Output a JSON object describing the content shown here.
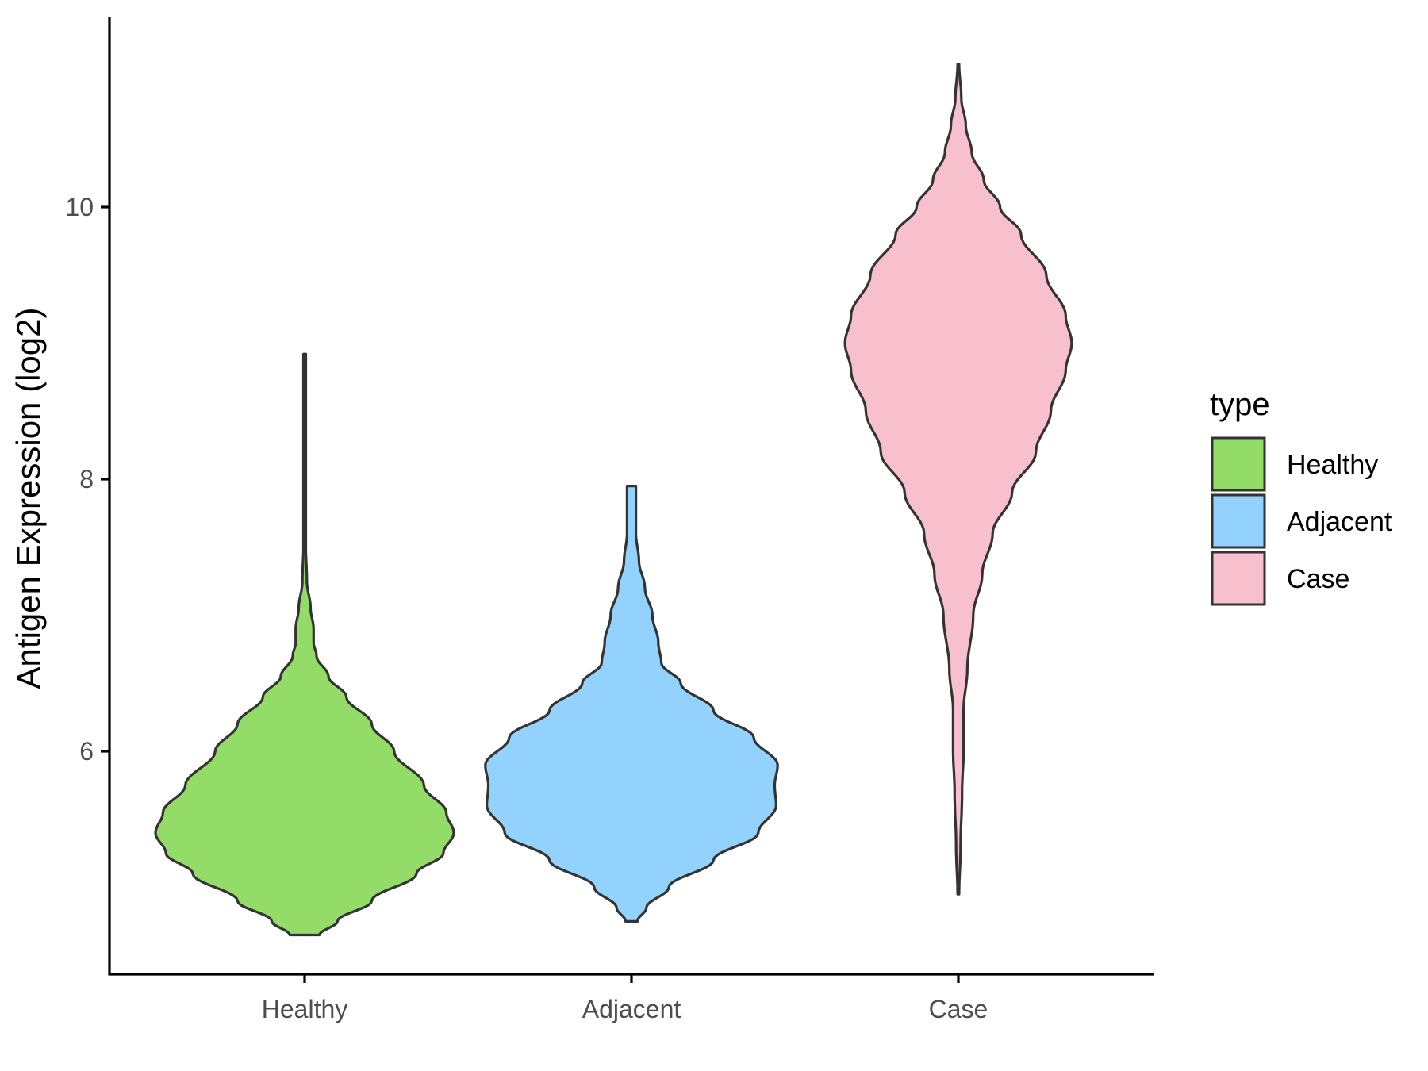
{
  "chart_data": {
    "type": "violin",
    "title": "",
    "xlabel": "",
    "ylabel": "Antigen Expression (log2)",
    "categories": [
      "Healthy",
      "Adjacent",
      "Case"
    ],
    "y_ticks": [
      6,
      8,
      10
    ],
    "ylim": [
      4.4,
      11.4
    ],
    "grid": false,
    "legend": {
      "title": "type",
      "placement": "right",
      "entries": [
        "Healthy",
        "Adjacent",
        "Case"
      ]
    },
    "colors": {
      "Healthy": "#93dc68",
      "Adjacent": "#92d2fc",
      "Case": "#f7c0cc",
      "outline": "#333333",
      "axis": "#000000"
    },
    "series": [
      {
        "category": "Healthy",
        "min": 4.65,
        "max": 8.92,
        "density_profile": [
          [
            4.65,
            0.1
          ],
          [
            4.75,
            0.22
          ],
          [
            4.9,
            0.45
          ],
          [
            5.1,
            0.75
          ],
          [
            5.25,
            0.93
          ],
          [
            5.4,
            1.0
          ],
          [
            5.55,
            0.95
          ],
          [
            5.75,
            0.8
          ],
          [
            6.0,
            0.6
          ],
          [
            6.2,
            0.45
          ],
          [
            6.4,
            0.28
          ],
          [
            6.55,
            0.16
          ],
          [
            6.7,
            0.08
          ],
          [
            6.8,
            0.06
          ],
          [
            6.9,
            0.06
          ],
          [
            7.05,
            0.04
          ],
          [
            7.25,
            0.015
          ],
          [
            7.5,
            0.008
          ],
          [
            8.0,
            0.008
          ],
          [
            8.6,
            0.008
          ],
          [
            8.92,
            0.008
          ]
        ]
      },
      {
        "category": "Adjacent",
        "min": 4.75,
        "max": 7.95,
        "density_profile": [
          [
            4.75,
            0.04
          ],
          [
            4.85,
            0.1
          ],
          [
            5.0,
            0.25
          ],
          [
            5.2,
            0.55
          ],
          [
            5.4,
            0.85
          ],
          [
            5.6,
            0.97
          ],
          [
            5.75,
            0.96
          ],
          [
            5.9,
            0.98
          ],
          [
            6.1,
            0.82
          ],
          [
            6.3,
            0.55
          ],
          [
            6.5,
            0.33
          ],
          [
            6.65,
            0.2
          ],
          [
            6.8,
            0.18
          ],
          [
            7.0,
            0.14
          ],
          [
            7.2,
            0.09
          ],
          [
            7.4,
            0.05
          ],
          [
            7.6,
            0.03
          ],
          [
            7.8,
            0.03
          ],
          [
            7.95,
            0.03
          ]
        ]
      },
      {
        "category": "Case",
        "min": 4.95,
        "max": 11.05,
        "density_profile": [
          [
            4.95,
            0.005
          ],
          [
            5.3,
            0.015
          ],
          [
            5.7,
            0.025
          ],
          [
            6.0,
            0.035
          ],
          [
            6.3,
            0.035
          ],
          [
            6.6,
            0.06
          ],
          [
            7.0,
            0.1
          ],
          [
            7.3,
            0.16
          ],
          [
            7.6,
            0.23
          ],
          [
            7.9,
            0.36
          ],
          [
            8.2,
            0.52
          ],
          [
            8.5,
            0.62
          ],
          [
            8.8,
            0.72
          ],
          [
            9.0,
            0.76
          ],
          [
            9.2,
            0.72
          ],
          [
            9.5,
            0.59
          ],
          [
            9.8,
            0.42
          ],
          [
            10.0,
            0.28
          ],
          [
            10.2,
            0.17
          ],
          [
            10.4,
            0.09
          ],
          [
            10.6,
            0.05
          ],
          [
            10.8,
            0.02
          ],
          [
            11.05,
            0.005
          ]
        ]
      }
    ]
  }
}
